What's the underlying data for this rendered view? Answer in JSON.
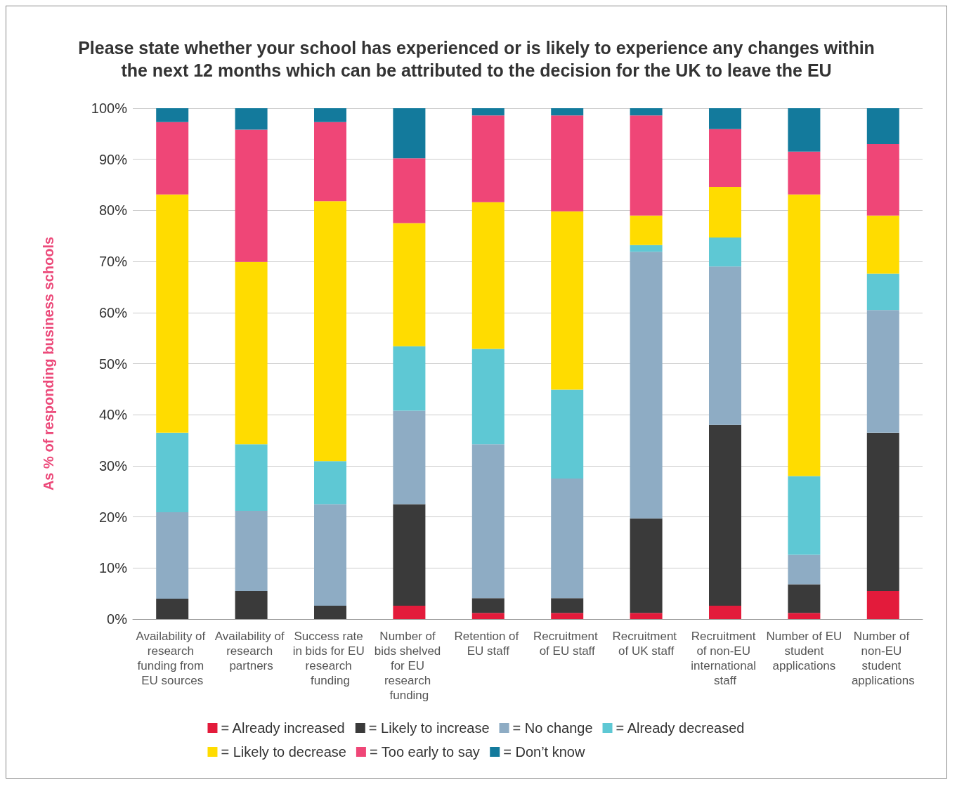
{
  "chart_data": {
    "type": "bar",
    "stacked": true,
    "title": "Please state whether your school has experienced or is likely to experience any changes within\nthe next 12 months which can be attributed to the decision for the UK to leave the EU",
    "ylabel": "As % of responding business schools",
    "categories": [
      "Availability of research funding from EU sources",
      "Availability of research partners",
      "Success rate in bids for EU research funding",
      "Number of bids shelved for EU research funding",
      "Retention of EU staff",
      "Recruitment of EU staff",
      "Recruitment of UK staff",
      "Recruitment of non-EU international staff",
      "Number of EU student applications",
      "Number of non-EU student applications"
    ],
    "series": [
      {
        "name": "= Already increased",
        "color": "#e31b3b",
        "values": [
          0,
          0,
          0,
          2.6,
          1.2,
          1.2,
          1.2,
          2.6,
          1.2,
          5.5
        ]
      },
      {
        "name": "= Likely to increase",
        "color": "#3a3a3a",
        "values": [
          4,
          5.5,
          2.6,
          19.9,
          2.9,
          2.9,
          18.5,
          35.4,
          5.6,
          31
        ]
      },
      {
        "name": "= No change",
        "color": "#8eacc4",
        "values": [
          16.9,
          15.7,
          19.9,
          18.3,
          30.1,
          23.4,
          52.2,
          31,
          5.8,
          24
        ]
      },
      {
        "name": "= Already decreased",
        "color": "#5ec8d4",
        "values": [
          15.6,
          13,
          8.4,
          12.6,
          18.7,
          17.4,
          1.3,
          5.7,
          15.4,
          7.1
        ]
      },
      {
        "name": "= Likely to decrease",
        "color": "#ffdc00",
        "values": [
          46.6,
          35.7,
          50.9,
          24.1,
          28.7,
          34.9,
          5.8,
          9.9,
          55.1,
          11.4
        ]
      },
      {
        "name": "= Too early to say",
        "color": "#ef4677",
        "values": [
          14.2,
          25.9,
          15.5,
          12.7,
          17,
          18.8,
          19.6,
          11.3,
          8.4,
          14
        ]
      },
      {
        "name": "= Don’t know",
        "color": "#137a9c",
        "values": [
          2.7,
          4.2,
          2.7,
          9.8,
          1.4,
          1.4,
          1.4,
          4.1,
          8.5,
          7
        ]
      }
    ],
    "ylim": [
      0,
      100
    ],
    "yticks": [
      {
        "value": 0,
        "label": "0%"
      },
      {
        "value": 10,
        "label": "10%"
      },
      {
        "value": 20,
        "label": "20%"
      },
      {
        "value": 30,
        "label": "30%"
      },
      {
        "value": 40,
        "label": "40%"
      },
      {
        "value": 50,
        "label": "50%"
      },
      {
        "value": 60,
        "label": "60%"
      },
      {
        "value": 70,
        "label": "70%"
      },
      {
        "value": 80,
        "label": "80%"
      },
      {
        "value": 90,
        "label": "90%"
      },
      {
        "value": 100,
        "label": "100%"
      }
    ],
    "grid": "y",
    "legend": "bottom"
  }
}
